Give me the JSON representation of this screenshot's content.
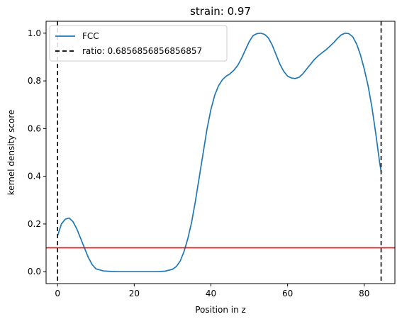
{
  "chart_data": {
    "type": "line",
    "title": "strain: 0.97",
    "xlabel": "Position in z",
    "ylabel": "kernel density score",
    "xlim": [
      -3,
      88
    ],
    "ylim": [
      -0.05,
      1.05
    ],
    "x_ticks": [
      0,
      20,
      40,
      60,
      80
    ],
    "x_tick_labels": [
      "0",
      "20",
      "40",
      "60",
      "80"
    ],
    "y_ticks": [
      0.0,
      0.2,
      0.4,
      0.6,
      0.8,
      1.0
    ],
    "y_tick_labels": [
      "0.0",
      "0.2",
      "0.4",
      "0.6",
      "0.8",
      "1.0"
    ],
    "grid": false,
    "legend_position": "top-left",
    "series": [
      {
        "name": "FCC",
        "color": "#1f77b4",
        "style": "solid",
        "x": [
          0,
          1,
          2,
          3,
          4,
          5,
          6,
          7,
          8,
          9,
          10,
          12,
          14,
          16,
          18,
          20,
          22,
          24,
          26,
          28,
          30,
          31,
          32,
          33,
          34,
          35,
          36,
          37,
          38,
          39,
          40,
          41,
          42,
          43,
          44,
          45,
          46,
          47,
          48,
          49,
          50,
          51,
          52,
          53,
          54,
          55,
          56,
          57,
          58,
          59,
          60,
          61,
          62,
          63,
          64,
          65,
          66,
          67,
          68,
          69,
          70,
          71,
          72,
          73,
          74,
          75,
          76,
          77,
          78,
          79,
          80,
          81,
          82,
          83,
          84,
          84.4
        ],
        "y": [
          0.15,
          0.2,
          0.22,
          0.225,
          0.21,
          0.18,
          0.14,
          0.1,
          0.06,
          0.03,
          0.012,
          0.003,
          0.001,
          0.0,
          0.0,
          0.0,
          0.0,
          0.0,
          0.0,
          0.002,
          0.01,
          0.022,
          0.045,
          0.085,
          0.14,
          0.21,
          0.3,
          0.4,
          0.5,
          0.6,
          0.68,
          0.74,
          0.78,
          0.805,
          0.82,
          0.83,
          0.845,
          0.865,
          0.895,
          0.93,
          0.965,
          0.99,
          0.998,
          1.0,
          0.995,
          0.98,
          0.95,
          0.91,
          0.87,
          0.84,
          0.82,
          0.812,
          0.81,
          0.815,
          0.83,
          0.85,
          0.87,
          0.89,
          0.905,
          0.918,
          0.93,
          0.945,
          0.96,
          0.978,
          0.993,
          1.0,
          0.998,
          0.985,
          0.955,
          0.91,
          0.85,
          0.78,
          0.69,
          0.58,
          0.46,
          0.42
        ]
      },
      {
        "name": "ratio: 0.6856856856856857",
        "color": "#000000",
        "style": "dashed",
        "type": "vline",
        "x_positions": [
          0,
          84.4
        ]
      }
    ],
    "hlines": [
      {
        "y": 0.1,
        "color": "#ff0000",
        "style": "solid"
      }
    ]
  }
}
